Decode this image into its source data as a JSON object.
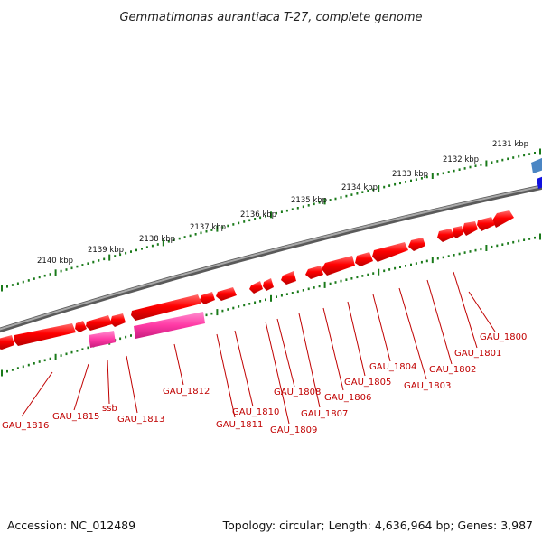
{
  "title": "Gemmatimonas aurantiaca T-27, complete genome",
  "accession": "Accession: NC_012489",
  "summary": "Topology: circular; Length: 4,636,964 bp; Genes: 3,987",
  "scale_labels": [
    "2131 kbp",
    "2132 kbp",
    "2133 kbp",
    "2134 kbp",
    "2135 kbp",
    "2136 kbp",
    "2137 kbp",
    "2138 kbp",
    "2139 kbp",
    "2140 kbp"
  ],
  "gene_labels": [
    "GAU_1800",
    "GAU_1801",
    "GAU_1802",
    "GAU_1803",
    "GAU_1804",
    "GAU_1805",
    "GAU_1806",
    "GAU_1807",
    "GAU_1808",
    "GAU_1809",
    "GAU_1810",
    "GAU_1811",
    "GAU_1812",
    "GAU_1813",
    "ssb",
    "GAU_1815",
    "GAU_1816"
  ],
  "colors": {
    "cds": "#ff0000",
    "ssb": "#ff3aa5",
    "backbone": "#808080",
    "ticks": "#1a7a1a",
    "label": "#c00000",
    "blue": "#1010e0",
    "steelblue": "#4b86c4"
  }
}
